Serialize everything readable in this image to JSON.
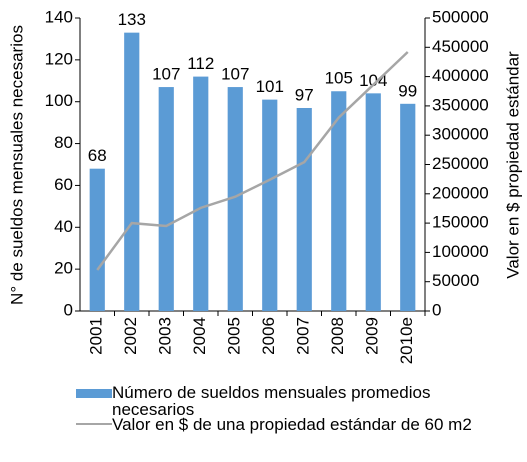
{
  "chart_data": {
    "type": "bar-line",
    "y_label": "N° de sueldos mensuales necesarios",
    "y2_label": "Valor en $ propiedad estándar",
    "categories": [
      "2001",
      "2002",
      "2003",
      "2004",
      "2005",
      "2006",
      "2007",
      "2008",
      "2009",
      "2010e"
    ],
    "series": [
      {
        "name": "Número de sueldos mensuales promedios necesarios",
        "type": "bar",
        "color": "#5b9bd5",
        "values": [
          68,
          133,
          107,
          112,
          107,
          101,
          97,
          105,
          104,
          99
        ]
      },
      {
        "name": "Valor en $ de una propiedad estándar de 60 m2",
        "type": "line",
        "axis": "y2",
        "color": "#a6a6a6",
        "values": [
          70000,
          150000,
          145000,
          176000,
          195000,
          224000,
          254000,
          330000,
          386000,
          442000
        ]
      }
    ],
    "ylim": [
      0,
      140
    ],
    "yticks": [
      0,
      20,
      40,
      60,
      80,
      100,
      120,
      140
    ],
    "y2lim": [
      0,
      500000
    ],
    "y2ticks": [
      0,
      50000,
      100000,
      150000,
      200000,
      250000,
      300000,
      350000,
      400000,
      450000,
      500000
    ]
  }
}
